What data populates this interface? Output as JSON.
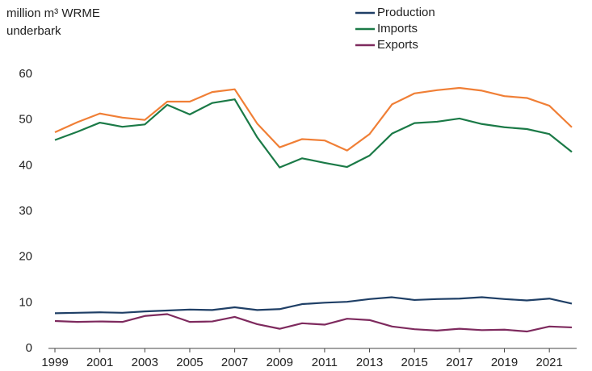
{
  "chart_data": {
    "type": "line",
    "ylabel": [
      "million m³ WRME",
      "underbark"
    ],
    "x": [
      1999,
      2000,
      2001,
      2002,
      2003,
      2004,
      2005,
      2006,
      2007,
      2008,
      2009,
      2010,
      2011,
      2012,
      2013,
      2014,
      2015,
      2016,
      2017,
      2018,
      2019,
      2020,
      2021,
      2022
    ],
    "xlim": [
      1999,
      2022
    ],
    "xticks": [
      1999,
      2001,
      2003,
      2005,
      2007,
      2009,
      2011,
      2013,
      2015,
      2017,
      2019,
      2021
    ],
    "ylim": [
      0,
      60
    ],
    "yticks": [
      0,
      10,
      20,
      30,
      40,
      50,
      60
    ],
    "grid": false,
    "legend": "top",
    "series": [
      {
        "name": "Production",
        "color": "#1f3f66",
        "values": [
          7.7,
          7.8,
          7.9,
          7.8,
          8.1,
          8.3,
          8.5,
          8.4,
          9.0,
          8.4,
          8.6,
          9.7,
          10.0,
          10.2,
          10.8,
          11.2,
          10.6,
          10.8,
          10.9,
          11.2,
          10.8,
          10.5,
          10.9,
          9.8
        ]
      },
      {
        "name": "Imports",
        "color": "#1b7a47",
        "values": [
          45.6,
          47.4,
          49.4,
          48.5,
          49.0,
          53.3,
          51.2,
          53.7,
          54.5,
          46.2,
          39.6,
          41.6,
          40.6,
          39.7,
          42.2,
          47.0,
          49.3,
          49.6,
          50.3,
          49.1,
          48.4,
          48.0,
          46.9,
          43.0
        ]
      },
      {
        "name": "Exports",
        "color": "#7e2a5e",
        "values": [
          6.0,
          5.8,
          5.9,
          5.8,
          7.1,
          7.5,
          5.8,
          5.9,
          6.9,
          5.3,
          4.3,
          5.5,
          5.2,
          6.5,
          6.2,
          4.8,
          4.2,
          3.9,
          4.3,
          4.0,
          4.1,
          3.7,
          4.8,
          4.6
        ]
      },
      {
        "color": "#f07f36",
        "values": [
          47.3,
          49.5,
          51.4,
          50.5,
          50.0,
          54.0,
          54.0,
          56.1,
          56.7,
          49.2,
          44.0,
          45.8,
          45.5,
          43.3,
          46.9,
          53.4,
          55.8,
          56.5,
          57.0,
          56.4,
          55.2,
          54.8,
          53.1,
          48.4
        ]
      }
    ]
  }
}
